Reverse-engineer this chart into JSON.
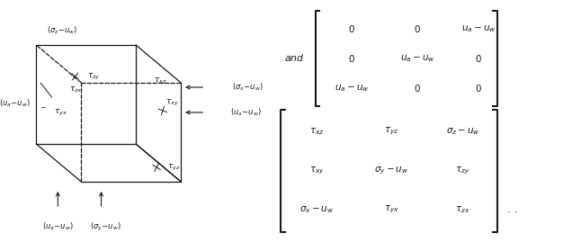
{
  "background_color": "#ffffff",
  "fig_width": 6.36,
  "fig_height": 2.69,
  "dpi": 100,
  "text_color": "#1a1a1a",
  "cube_color": "#1a1a1a",
  "matrix1_rows": [
    [
      "\\sigma_x - u_w",
      "\\tau_{yx}",
      "\\tau_{zx}"
    ],
    [
      "\\tau_{xy}",
      "\\sigma_y - u_w",
      "\\tau_{zy}"
    ],
    [
      "\\tau_{xz}",
      "\\tau_{yz}",
      "\\sigma_z - u_w"
    ]
  ],
  "matrix2_rows": [
    [
      "u_a - u_w",
      "0",
      "0"
    ],
    [
      "0",
      "u_a - u_w",
      "0"
    ],
    [
      "0",
      "0",
      "u_a - u_w"
    ]
  ]
}
